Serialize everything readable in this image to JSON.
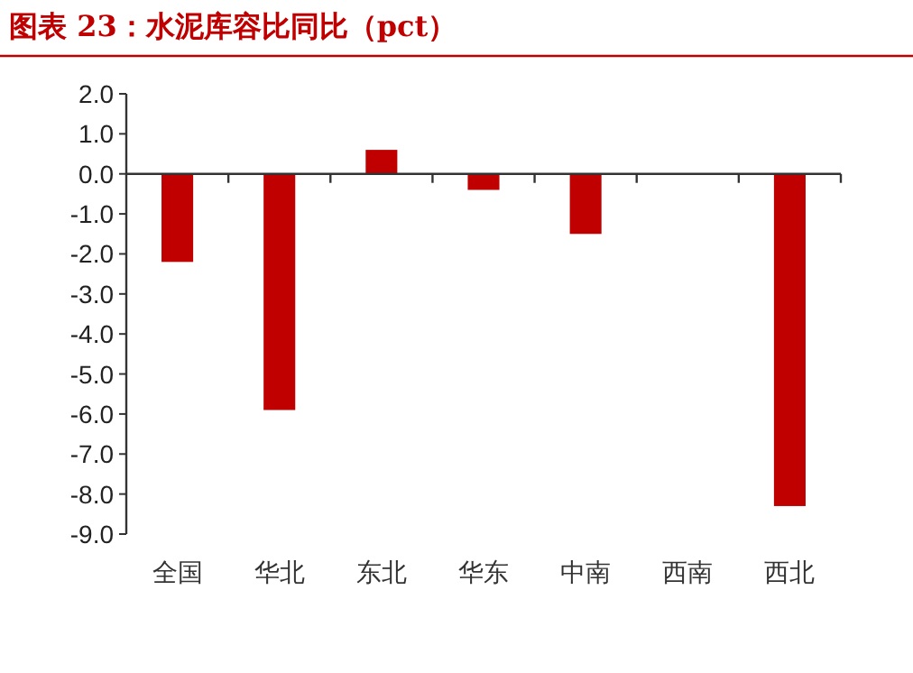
{
  "chart_data": {
    "type": "bar",
    "title": "图表 23：水泥库容比同比（pct）",
    "categories": [
      "全国",
      "华北",
      "东北",
      "华东",
      "中南",
      "西南",
      "西北"
    ],
    "values": [
      -2.2,
      -5.9,
      0.6,
      -0.4,
      -1.5,
      0,
      -8.3
    ],
    "color": "#c00000",
    "ylim": [
      -9,
      2
    ],
    "yticks": [
      {
        "value": 2,
        "label": "2.0"
      },
      {
        "value": 1,
        "label": "1.0"
      },
      {
        "value": 0,
        "label": "0.0"
      },
      {
        "value": -1,
        "label": "-1.0"
      },
      {
        "value": -2,
        "label": "-2.0"
      },
      {
        "value": -3,
        "label": "-3.0"
      },
      {
        "value": -4,
        "label": "-4.0"
      },
      {
        "value": -5,
        "label": "-5.0"
      },
      {
        "value": -6,
        "label": "-6.0"
      },
      {
        "value": -7,
        "label": "-7.0"
      },
      {
        "value": -8,
        "label": "-8.0"
      },
      {
        "value": -9,
        "label": "-9.0"
      }
    ]
  }
}
